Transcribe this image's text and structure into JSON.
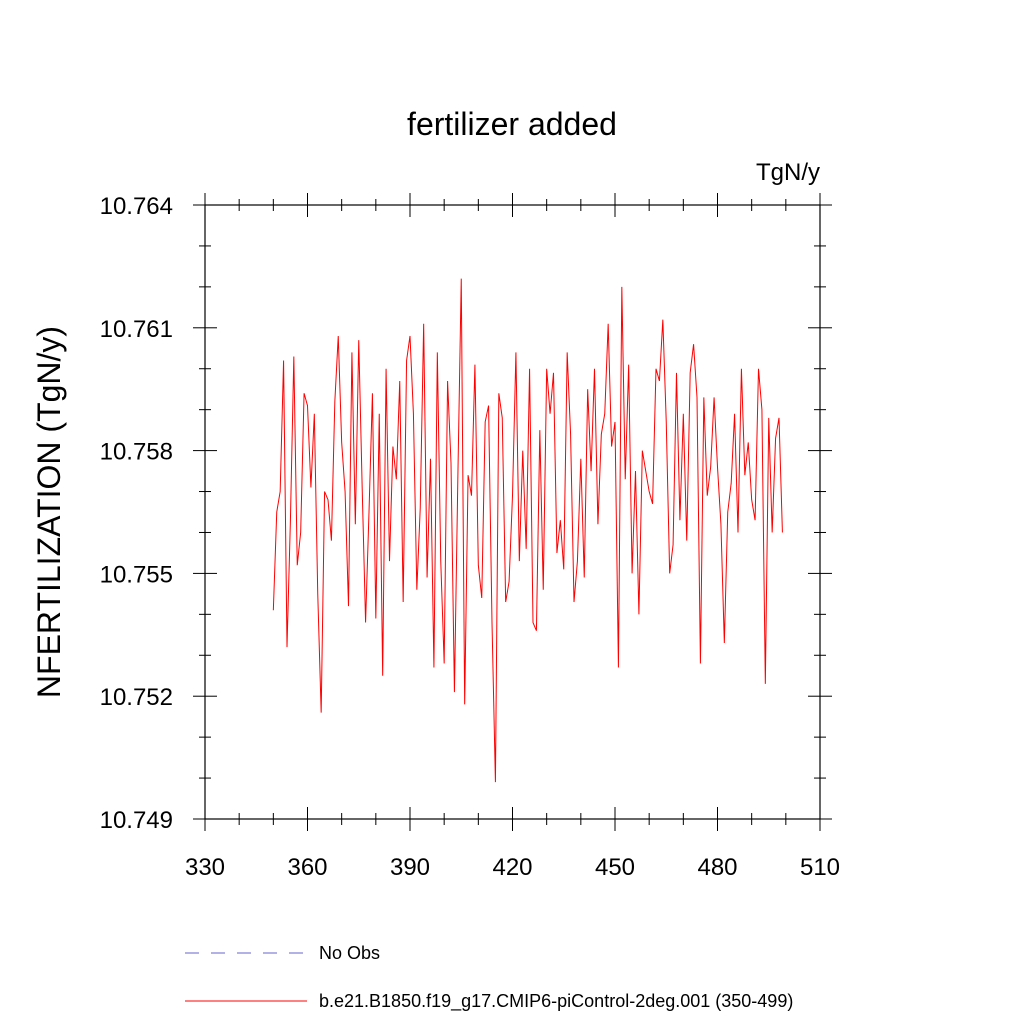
{
  "chart_data": {
    "type": "line",
    "title": "fertilizer added",
    "units_label": "TgN/y",
    "ylabel": "NFERTILIZATION  (TgN/y)",
    "xlabel": "",
    "xlim": [
      330,
      510
    ],
    "ylim": [
      10.749,
      10.764
    ],
    "xticks": [
      330,
      360,
      390,
      420,
      450,
      480,
      510
    ],
    "xtick_labels": [
      "330",
      "360",
      "390",
      "420",
      "450",
      "480",
      "510"
    ],
    "yticks": [
      10.749,
      10.752,
      10.755,
      10.758,
      10.761,
      10.764
    ],
    "ytick_labels": [
      "10.749",
      "10.752",
      "10.755",
      "10.758",
      "10.761",
      "10.764"
    ],
    "x_minor_step": 10,
    "y_minor_step": 0.001,
    "grid": false,
    "legend": [
      {
        "label": "No Obs",
        "color": "#6666cc",
        "dash": true
      },
      {
        "label": "b.e21.B1850.f19_g17.CMIP6-piControl-2deg.001 (350-499)",
        "color": "#ff0000",
        "dash": false
      }
    ],
    "series": [
      {
        "name": "b.e21.B1850.f19_g17.CMIP6-piControl-2deg.001 (350-499)",
        "color": "#ff0000",
        "x_start": 350,
        "x_step": 1,
        "values": [
          10.7541,
          10.7565,
          10.757,
          10.7602,
          10.7532,
          10.7563,
          10.7603,
          10.7552,
          10.756,
          10.7594,
          10.7591,
          10.7571,
          10.7589,
          10.7545,
          10.7516,
          10.757,
          10.7568,
          10.7558,
          10.7592,
          10.7608,
          10.7582,
          10.757,
          10.7542,
          10.7604,
          10.7562,
          10.7607,
          10.7571,
          10.7538,
          10.7565,
          10.7594,
          10.7539,
          10.7589,
          10.7525,
          10.76,
          10.7553,
          10.7581,
          10.7573,
          10.7597,
          10.7543,
          10.7602,
          10.7608,
          10.7589,
          10.7546,
          10.7566,
          10.7611,
          10.7549,
          10.7578,
          10.7527,
          10.7604,
          10.7553,
          10.7528,
          10.7597,
          10.7577,
          10.7521,
          10.7573,
          10.7622,
          10.7518,
          10.7574,
          10.7569,
          10.7601,
          10.7552,
          10.7544,
          10.7587,
          10.7591,
          10.7538,
          10.7499,
          10.7594,
          10.7588,
          10.7543,
          10.7548,
          10.7569,
          10.7604,
          10.7553,
          10.758,
          10.7556,
          10.76,
          10.7538,
          10.7536,
          10.7585,
          10.7546,
          10.76,
          10.7589,
          10.7599,
          10.7555,
          10.7563,
          10.7551,
          10.7604,
          10.7584,
          10.7543,
          10.7553,
          10.7578,
          10.7549,
          10.7595,
          10.7575,
          10.76,
          10.7562,
          10.7584,
          10.7589,
          10.7611,
          10.7581,
          10.7587,
          10.7527,
          10.762,
          10.7573,
          10.7601,
          10.755,
          10.7575,
          10.754,
          10.758,
          10.7575,
          10.757,
          10.7567,
          10.76,
          10.7597,
          10.7612,
          10.7587,
          10.755,
          10.7557,
          10.7599,
          10.7563,
          10.7589,
          10.7558,
          10.7599,
          10.7606,
          10.7593,
          10.7528,
          10.7593,
          10.7569,
          10.7576,
          10.7593,
          10.7576,
          10.7562,
          10.7533,
          10.7565,
          10.7572,
          10.7589,
          10.756,
          10.76,
          10.7574,
          10.7582,
          10.7568,
          10.7563,
          10.76,
          10.759,
          10.7523,
          10.7588,
          10.756,
          10.7583,
          10.7588,
          10.756
        ]
      }
    ]
  }
}
